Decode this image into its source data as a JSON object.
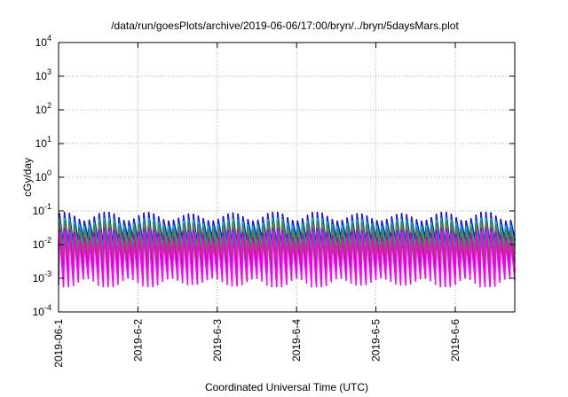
{
  "chart_data": {
    "type": "line",
    "title": "/data/run/goesPlots/archive/2019-06-06/17:00/bryn/../bryn/5daysMars.plot",
    "xlabel": "Coordinated Universal Time (UTC)",
    "ylabel": "cGy/day",
    "yscale": "log",
    "ylim": [
      0.0001,
      10000
    ],
    "y_ticks": [
      {
        "value": 0.0001,
        "base": "10",
        "exp": "-4"
      },
      {
        "value": 0.001,
        "base": "10",
        "exp": "-3"
      },
      {
        "value": 0.01,
        "base": "10",
        "exp": "-2"
      },
      {
        "value": 0.1,
        "base": "10",
        "exp": "-1"
      },
      {
        "value": 1,
        "base": "10",
        "exp": "0"
      },
      {
        "value": 10,
        "base": "10",
        "exp": "1"
      },
      {
        "value": 100,
        "base": "10",
        "exp": "2"
      },
      {
        "value": 1000,
        "base": "10",
        "exp": "3"
      },
      {
        "value": 10000,
        "base": "10",
        "exp": "4"
      }
    ],
    "x_ticks": [
      "2019-06-1",
      "2019-6-2",
      "2019-6-3",
      "2019-6-4",
      "2019-6-5",
      "2019-6-6"
    ],
    "xlim_days": [
      0,
      5.75
    ],
    "grid": true,
    "sawtooth_period_hours": 1.5,
    "series": [
      {
        "color": "#0000ff",
        "peak_high": 0.09,
        "peak_low": 0.05,
        "trough": 0.012
      },
      {
        "color": "#2a2ad0",
        "peak_high": 0.075,
        "peak_low": 0.042,
        "trough": 0.009
      },
      {
        "color": "#00c0c0",
        "peak_high": 0.06,
        "peak_low": 0.035,
        "trough": 0.007
      },
      {
        "color": "#2e8b57",
        "peak_high": 0.05,
        "peak_low": 0.028,
        "trough": 0.005
      },
      {
        "color": "#808000",
        "peak_high": 0.04,
        "peak_low": 0.022,
        "trough": 0.003
      },
      {
        "color": "#b000b0",
        "peak_high": 0.03,
        "peak_low": 0.016,
        "trough": 0.0015
      },
      {
        "color": "#ff00ff",
        "peak_high": 0.024,
        "peak_low": 0.012,
        "trough": 0.0008
      }
    ]
  }
}
